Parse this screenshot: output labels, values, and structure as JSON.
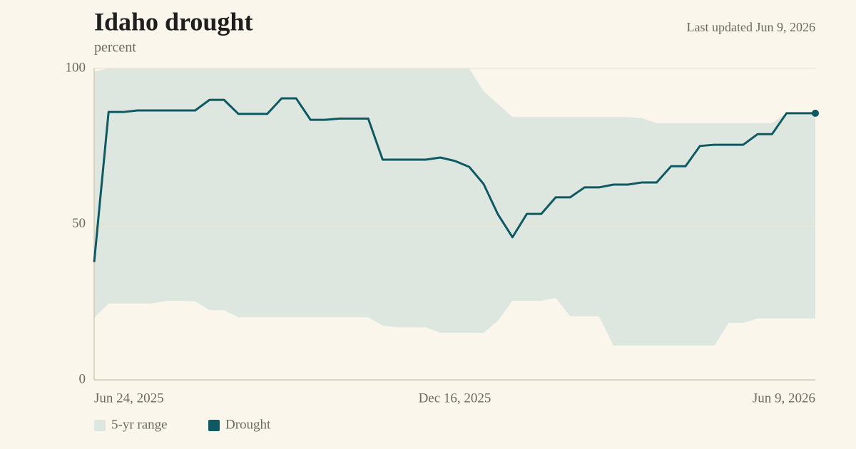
{
  "chart_data": {
    "type": "line",
    "title": "Idaho drought",
    "subtitle": "percent",
    "updated": "Last updated Jun 9, 2026",
    "x": [
      "2025-06-24",
      "2025-07-01",
      "2025-07-08",
      "2025-07-15",
      "2025-07-22",
      "2025-07-29",
      "2025-08-05",
      "2025-08-12",
      "2025-08-19",
      "2025-08-26",
      "2025-09-02",
      "2025-09-09",
      "2025-09-16",
      "2025-09-23",
      "2025-09-30",
      "2025-10-07",
      "2025-10-14",
      "2025-10-21",
      "2025-10-28",
      "2025-11-04",
      "2025-11-11",
      "2025-11-18",
      "2025-11-25",
      "2025-12-02",
      "2025-12-09",
      "2025-12-16",
      "2025-12-23",
      "2025-12-30",
      "2026-01-06",
      "2026-01-13",
      "2026-01-20",
      "2026-01-27",
      "2026-02-03",
      "2026-02-10",
      "2026-02-17",
      "2026-02-24",
      "2026-03-03",
      "2026-03-10",
      "2026-03-17",
      "2026-03-24",
      "2026-03-31",
      "2026-04-07",
      "2026-04-14",
      "2026-04-21",
      "2026-04-28",
      "2026-05-05",
      "2026-05-12",
      "2026-05-19",
      "2026-05-26",
      "2026-06-02",
      "2026-06-09"
    ],
    "xlim": [
      "2025-06-24",
      "2026-06-09"
    ],
    "xticks": [
      {
        "value": "2025-06-24",
        "label": "Jun 24, 2025"
      },
      {
        "value": "2025-12-16",
        "label": "Dec 16, 2025"
      },
      {
        "value": "2026-06-09",
        "label": "Jun 9, 2026"
      }
    ],
    "ylim": [
      0,
      100
    ],
    "yticks": [
      0,
      50,
      100
    ],
    "grid": true,
    "range": {
      "name": "5-yr range",
      "color": "#dde7e0",
      "low": [
        19.9,
        24.5,
        24.5,
        24.5,
        24.5,
        25.4,
        25.4,
        25.2,
        22.4,
        22.4,
        20.1,
        20.1,
        20.1,
        20.1,
        20.1,
        20.1,
        20.1,
        20.1,
        20.1,
        20.1,
        17.4,
        16.9,
        16.9,
        16.9,
        15.1,
        15.1,
        15.1,
        15.1,
        19.0,
        25.4,
        25.4,
        25.4,
        26.3,
        20.4,
        20.4,
        20.4,
        11.0,
        11.0,
        11.0,
        11.0,
        11.0,
        11.0,
        11.0,
        11.0,
        18.3,
        18.3,
        19.7,
        19.7,
        19.7,
        19.7,
        19.7
      ],
      "high": [
        99,
        100,
        100,
        100,
        100,
        100,
        100,
        100,
        100,
        100,
        100,
        100,
        100,
        100,
        100,
        100,
        100,
        100,
        100,
        100,
        100,
        100,
        100,
        100,
        100,
        100,
        100,
        92.7,
        88.6,
        84.4,
        84.4,
        84.4,
        84.4,
        84.4,
        84.4,
        84.4,
        84.4,
        84.4,
        84.0,
        82.4,
        82.4,
        82.4,
        82.4,
        82.4,
        82.4,
        82.4,
        82.4,
        82.4,
        85.6,
        85.6,
        85.6
      ]
    },
    "series": [
      {
        "name": "Drought",
        "color": "#0f5962",
        "values": [
          37.8,
          86.0,
          86.0,
          86.5,
          86.5,
          86.5,
          86.5,
          86.5,
          89.9,
          89.9,
          85.4,
          85.4,
          85.4,
          90.4,
          90.4,
          83.5,
          83.5,
          83.9,
          83.9,
          83.9,
          70.7,
          70.7,
          70.7,
          70.7,
          71.4,
          70.3,
          68.4,
          62.9,
          53.1,
          45.8,
          53.3,
          53.3,
          58.6,
          58.6,
          61.8,
          61.8,
          62.7,
          62.7,
          63.4,
          63.4,
          68.6,
          68.6,
          75.1,
          75.5,
          75.5,
          75.5,
          78.9,
          78.9,
          85.6,
          85.6,
          85.6
        ]
      }
    ]
  }
}
